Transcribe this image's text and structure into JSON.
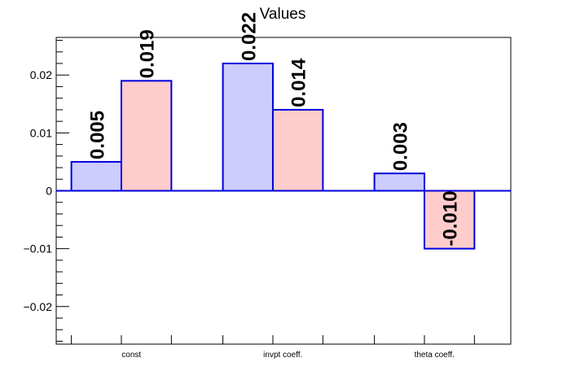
{
  "chart_data": {
    "type": "bar",
    "title": "Values",
    "categories": [
      "const",
      "invpt coeff.",
      "theta coeff."
    ],
    "series": [
      {
        "values": [
          0.005,
          0.022,
          0.003
        ],
        "color": "#ccccff",
        "labels": [
          "0.005",
          "0.022",
          "0.003"
        ]
      },
      {
        "values": [
          0.019,
          0.014,
          -0.01
        ],
        "color": "#ffcccc",
        "labels": [
          "0.019",
          "0.014",
          "-0.010"
        ]
      }
    ],
    "yticks": [
      {
        "value": 0.02,
        "label": "0.02"
      },
      {
        "value": 0.01,
        "label": "0.01"
      },
      {
        "value": 0,
        "label": "0"
      },
      {
        "value": -0.01,
        "label": "−0.01"
      },
      {
        "value": -0.02,
        "label": "−0.02"
      }
    ],
    "ylim": [
      -0.0265,
      0.0265
    ],
    "bar_edge_color": "#0000dd",
    "grid": false,
    "legend": "none"
  }
}
